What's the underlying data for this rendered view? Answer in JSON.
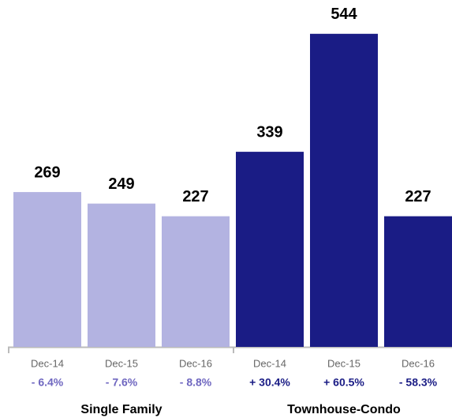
{
  "chart_data": {
    "type": "bar",
    "ylim": [
      0,
      600
    ],
    "groups": [
      {
        "name": "Single Family",
        "color": "#b3b3e1",
        "label_color": "#6f67c0",
        "categories": [
          "Dec-14",
          "Dec-15",
          "Dec-16"
        ],
        "values": [
          269,
          249,
          227
        ],
        "change_labels": [
          "- 6.4%",
          "- 7.6%",
          "- 8.8%"
        ]
      },
      {
        "name": "Townhouse-Condo",
        "color": "#1a1c85",
        "label_color": "#1a1c85",
        "categories": [
          "Dec-14",
          "Dec-15",
          "Dec-16"
        ],
        "values": [
          339,
          544,
          227
        ],
        "change_labels": [
          "+ 30.4%",
          "+ 60.5%",
          "- 58.3%"
        ]
      }
    ]
  }
}
